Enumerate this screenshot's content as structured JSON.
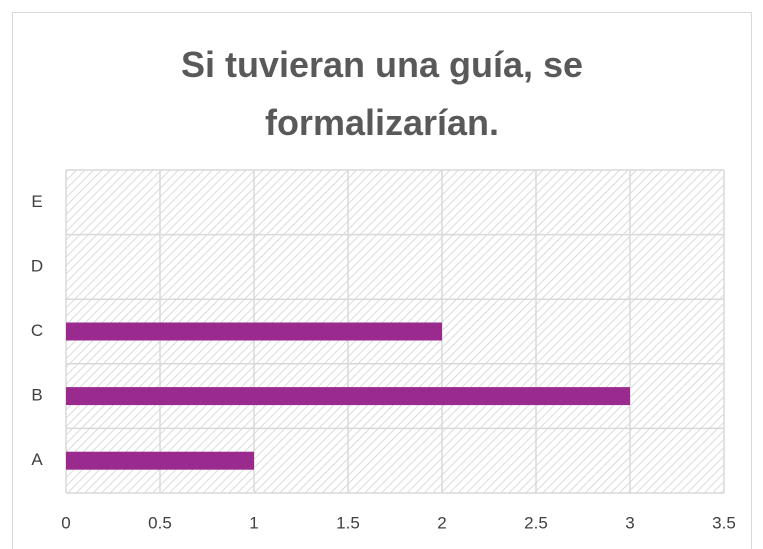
{
  "chart_data": {
    "type": "bar",
    "orientation": "horizontal",
    "title": "Si tuvieran una guía, se formalizarían.",
    "categories": [
      "A",
      "B",
      "C",
      "D",
      "E"
    ],
    "values": [
      1,
      3,
      2,
      0,
      0
    ],
    "color": "#9b2a8f",
    "xlim": [
      0,
      3.5
    ],
    "xticks": [
      0,
      0.5,
      1,
      1.5,
      2,
      2.5,
      3,
      3.5
    ],
    "grid": true
  }
}
